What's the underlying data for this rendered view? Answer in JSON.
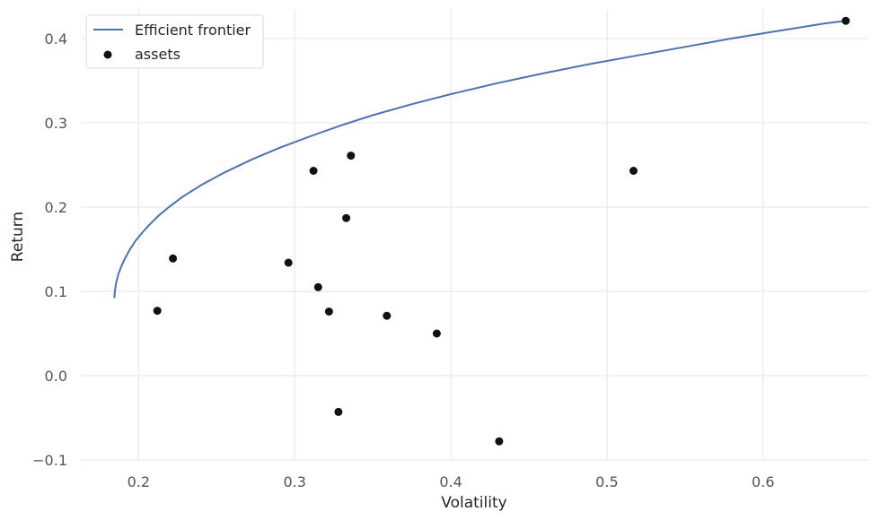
{
  "chart_data": {
    "type": "scatter",
    "xlabel": "Volatility",
    "ylabel": "Return",
    "xlim": [
      0.163,
      0.668
    ],
    "ylim": [
      -0.1,
      0.435
    ],
    "xticks": [
      0.2,
      0.3,
      0.4,
      0.5,
      0.6
    ],
    "xtick_labels": [
      "0.2",
      "0.3",
      "0.4",
      "0.5",
      "0.6"
    ],
    "yticks": [
      -0.1,
      0.0,
      0.1,
      0.2,
      0.3,
      0.4
    ],
    "ytick_labels": [
      "−0.1",
      "0.0",
      "0.1",
      "0.2",
      "0.3",
      "0.4"
    ],
    "grid": true,
    "legend_position": "top-left",
    "series": [
      {
        "name": "Efficient frontier",
        "kind": "line",
        "color": "#4c72b0",
        "x": [
          0.1845,
          0.1848,
          0.1856,
          0.187,
          0.189,
          0.1915,
          0.1945,
          0.198,
          0.2025,
          0.2075,
          0.213,
          0.2195,
          0.228,
          0.24,
          0.255,
          0.272,
          0.29,
          0.31,
          0.33,
          0.35,
          0.375,
          0.4,
          0.43,
          0.46,
          0.49,
          0.52,
          0.55,
          0.58,
          0.61,
          0.64,
          0.653
        ],
        "y": [
          0.092,
          0.1,
          0.11,
          0.12,
          0.13,
          0.14,
          0.15,
          0.16,
          0.17,
          0.18,
          0.19,
          0.2,
          0.212,
          0.226,
          0.241,
          0.256,
          0.27,
          0.284,
          0.297,
          0.309,
          0.322,
          0.334,
          0.347,
          0.359,
          0.37,
          0.38,
          0.39,
          0.4,
          0.409,
          0.418,
          0.421
        ]
      },
      {
        "name": "assets",
        "kind": "scatter",
        "color": "#111111",
        "x": [
          0.212,
          0.222,
          0.296,
          0.312,
          0.315,
          0.322,
          0.328,
          0.333,
          0.336,
          0.359,
          0.391,
          0.431,
          0.517,
          0.653
        ],
        "y": [
          0.077,
          0.139,
          0.134,
          0.243,
          0.105,
          0.076,
          -0.043,
          0.187,
          0.261,
          0.071,
          0.05,
          -0.078,
          0.243,
          0.421
        ]
      }
    ]
  }
}
